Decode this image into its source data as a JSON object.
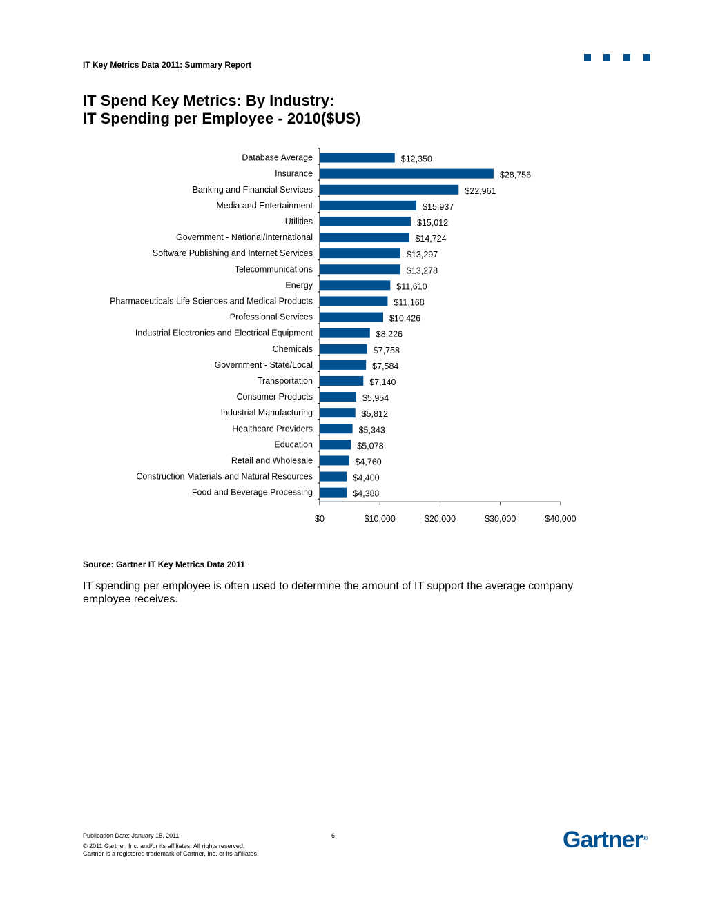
{
  "header": {
    "title": "IT Key Metrics Data 2011: Summary Report"
  },
  "colors": {
    "brand": "#00508f",
    "bar": "#00508f"
  },
  "page": {
    "title_line1": "IT Spend Key Metrics: By Industry:",
    "title_line2": "IT Spending per Employee - 2010($US)"
  },
  "chart_data": {
    "type": "bar",
    "orientation": "horizontal",
    "title": "IT Spending per Employee - 2010($US)",
    "xlabel": "",
    "ylabel": "",
    "xlim": [
      0,
      40000
    ],
    "x_ticks": [
      0,
      10000,
      20000,
      30000,
      40000
    ],
    "x_tick_labels": [
      "$0",
      "$10,000",
      "$20,000",
      "$30,000",
      "$40,000"
    ],
    "categories": [
      "Database Average",
      "Insurance",
      "Banking and Financial Services",
      "Media and Entertainment",
      "Utilities",
      "Government - National/International",
      "Software Publishing and Internet Services",
      "Telecommunications",
      "Energy",
      "Pharmaceuticals Life Sciences and Medical Products",
      "Professional Services",
      "Industrial Electronics and Electrical Equipment",
      "Chemicals",
      "Government - State/Local",
      "Transportation",
      "Consumer Products",
      "Industrial Manufacturing",
      "Healthcare Providers",
      "Education",
      "Retail and Wholesale",
      "Construction Materials and Natural Resources",
      "Food and Beverage Processing"
    ],
    "values": [
      12350,
      28756,
      22961,
      15937,
      15012,
      14724,
      13297,
      13278,
      11610,
      11168,
      10426,
      8226,
      7758,
      7584,
      7140,
      5954,
      5812,
      5343,
      5078,
      4760,
      4400,
      4388
    ],
    "value_labels": [
      "$12,350",
      "$28,756",
      "$22,961",
      "$15,937",
      "$15,012",
      "$14,724",
      "$13,297",
      "$13,278",
      "$11,610",
      "$11,168",
      "$10,426",
      "$8,226",
      "$7,758",
      "$7,584",
      "$7,140",
      "$5,954",
      "$5,812",
      "$5,343",
      "$5,078",
      "$4,760",
      "$4,400",
      "$4,388"
    ]
  },
  "source": "Source: Gartner IT Key Metrics Data 2011",
  "body_text": "IT spending per employee is often used to determine the amount of IT support the average company employee receives.",
  "footer": {
    "publication_date": "Publication Date: January 15,  2011",
    "page_number": "6",
    "copyright_line1": "© 2011 Gartner, Inc. and/or its affiliates. All rights reserved.",
    "copyright_line2": "Gartner is a registered trademark of Gartner, Inc. or its affiliates.",
    "logo_text": "Gartner",
    "logo_mark": "®"
  }
}
